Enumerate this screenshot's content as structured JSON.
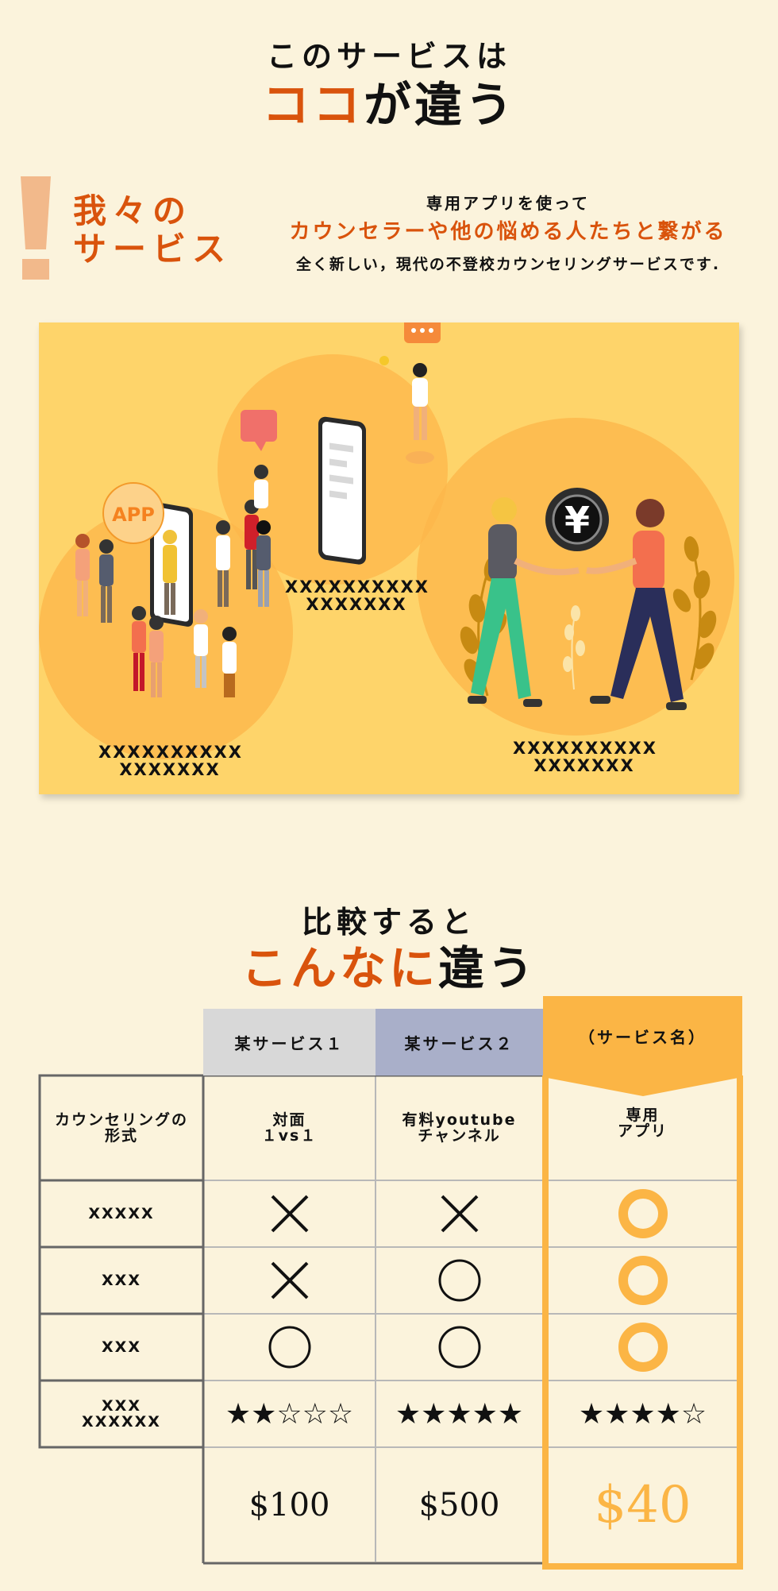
{
  "header": {
    "line1": "このサービスは",
    "line2_highlight": "ココ",
    "line2_rest": "が違う"
  },
  "service": {
    "title_line1": "我々の",
    "title_line2": "サービス",
    "desc_line1": "専用アプリを使って",
    "desc_line2": "カウンセラーや他の悩める人たちと繋がる",
    "desc_line3": "全く新しい，現代の不登校カウンセリングサービスです."
  },
  "illustration": {
    "app_badge": "APP",
    "yen_symbol": "¥",
    "captions": [
      {
        "line1": "XXXXXXXXXX",
        "line2": "XXXXXXX"
      },
      {
        "line1": "XXXXXXXXXX",
        "line2": "XXXXXXX"
      },
      {
        "line1": "XXXXXXXXXX",
        "line2": "XXXXXXX"
      }
    ]
  },
  "comparison": {
    "line1": "比較すると",
    "line2_highlight": "こんなに",
    "line2_rest": "違う",
    "columns": [
      "某サービス１",
      "某サービス２",
      "（サービス名）"
    ],
    "rows": [
      {
        "label": "カウンセリングの\n形式",
        "cells": [
          "対面\n１vs１",
          "有料youtube\nチャンネル",
          "専用\nアプリ"
        ]
      },
      {
        "label": "XXXXX",
        "cells": [
          "cross",
          "cross",
          "circle"
        ]
      },
      {
        "label": "XXX",
        "cells": [
          "cross",
          "circle",
          "circle"
        ]
      },
      {
        "label": "XXX",
        "cells": [
          "circle",
          "circle",
          "circle"
        ]
      },
      {
        "label": "XXX\nXXXXXX",
        "cells": [
          "★★☆☆☆",
          "★★★★★",
          "★★★★☆"
        ]
      }
    ],
    "prices": [
      "$100",
      "$500",
      "$40"
    ],
    "colors": {
      "accent": "#fbb545",
      "accent_text": "#d9530c",
      "col1": "#d8d8d8",
      "col2": "#a9afc9"
    }
  }
}
